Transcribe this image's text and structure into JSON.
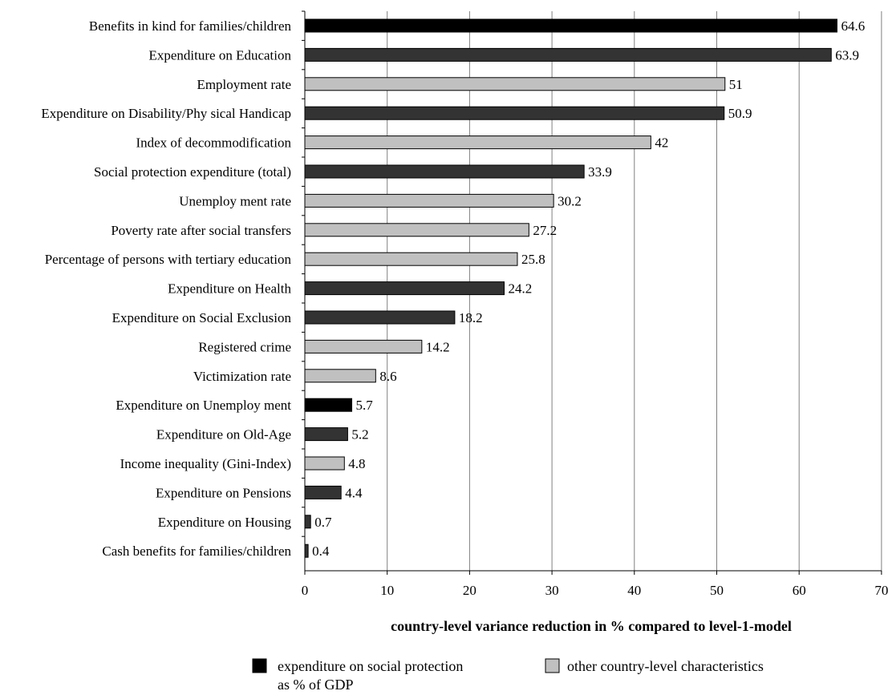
{
  "chart_data": {
    "type": "bar",
    "orientation": "horizontal",
    "xlabel": "country-level variance reduction in % compared to level-1-model",
    "xlim": [
      0,
      70
    ],
    "xticks": [
      0,
      10,
      20,
      30,
      40,
      50,
      60,
      70
    ],
    "grid": "vertical",
    "bars": [
      {
        "label": "Benefits in kind for families/children",
        "value": 64.6,
        "group": "expenditure"
      },
      {
        "label": "Expenditure on Education",
        "value": 63.9,
        "group": "expenditure"
      },
      {
        "label": "Employment rate",
        "value": 51,
        "group": "other"
      },
      {
        "label": "Expenditure on Disability/Phy sical Handicap",
        "value": 50.9,
        "group": "expenditure"
      },
      {
        "label": "Index of decommodification",
        "value": 42,
        "group": "other"
      },
      {
        "label": "Social protection expenditure (total)",
        "value": 33.9,
        "group": "expenditure"
      },
      {
        "label": "Unemploy ment rate",
        "value": 30.2,
        "group": "other"
      },
      {
        "label": "Poverty rate after social transfers",
        "value": 27.2,
        "group": "other"
      },
      {
        "label": "Percentage of persons with tertiary education",
        "value": 25.8,
        "group": "other"
      },
      {
        "label": "Expenditure on Health",
        "value": 24.2,
        "group": "expenditure"
      },
      {
        "label": "Expenditure on Social Exclusion",
        "value": 18.2,
        "group": "expenditure"
      },
      {
        "label": "Registered crime",
        "value": 14.2,
        "group": "other"
      },
      {
        "label": "Victimization rate",
        "value": 8.6,
        "group": "other"
      },
      {
        "label": "Expenditure on Unemploy ment",
        "value": 5.7,
        "group": "expenditure"
      },
      {
        "label": "Expenditure on Old-Age",
        "value": 5.2,
        "group": "expenditure"
      },
      {
        "label": "Income inequality (Gini-Index)",
        "value": 4.8,
        "group": "other"
      },
      {
        "label": "Expenditure on Pensions",
        "value": 4.4,
        "group": "expenditure"
      },
      {
        "label": "Expenditure on Housing",
        "value": 0.7,
        "group": "expenditure"
      },
      {
        "label": "Cash benefits for families/children",
        "value": 0.4,
        "group": "expenditure"
      }
    ],
    "legend": {
      "placement": "bottom",
      "items": [
        {
          "group": "expenditure",
          "line1": "expenditure on social protection",
          "line2": "as % of GDP",
          "color": "#000000"
        },
        {
          "group": "other",
          "line1": "other country-level characteristics",
          "line2": "",
          "color": "#c0c0c0"
        }
      ]
    },
    "colors": {
      "expenditure_first": "#000000",
      "expenditure": "#333333",
      "other": "#c0c0c0",
      "grid": "#808080",
      "axis": "#000000"
    }
  }
}
